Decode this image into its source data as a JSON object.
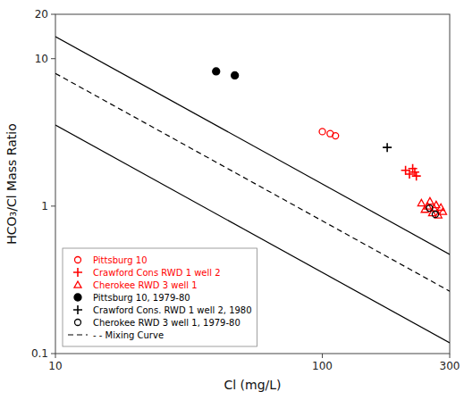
{
  "chart_data": {
    "type": "scatter",
    "xlabel": "Cl (mg/L)",
    "ylabel": "HCO₃/Cl Mass Ratio",
    "log": true,
    "grid": false,
    "legend": "lower left",
    "xlim": [
      10,
      300
    ],
    "ylim": [
      0.1,
      20
    ],
    "xticks": [
      10,
      100,
      300
    ],
    "yticks": [
      0.1,
      1,
      10,
      20
    ],
    "series": [
      {
        "name": "Pittsburg 10",
        "color": "#FF0000",
        "marker": "circle-open",
        "x": [
          100,
          107,
          112
        ],
        "values": [
          3.2,
          3.1,
          3.0
        ]
      },
      {
        "name": "Crawford Cons RWD 1 well 2",
        "color": "#FF0000",
        "marker": "plus",
        "x": [
          205,
          212,
          218,
          222,
          225
        ],
        "values": [
          1.75,
          1.65,
          1.8,
          1.7,
          1.6
        ]
      },
      {
        "name": "Cherokee RWD 3 well 1",
        "color": "#FF0000",
        "marker": "triangle-open",
        "x": [
          235,
          242,
          248,
          253,
          258,
          262,
          267,
          272,
          278,
          283
        ],
        "values": [
          1.05,
          0.95,
          1.0,
          1.08,
          0.9,
          0.97,
          1.02,
          0.87,
          0.98,
          0.92
        ]
      },
      {
        "name": "Pittsburg 10, 1979-80",
        "color": "#000000",
        "marker": "circle",
        "x": [
          40,
          47
        ],
        "values": [
          8.2,
          7.7
        ]
      },
      {
        "name": "Crawford Cons. RWD 1 well 2, 1980",
        "color": "#000000",
        "marker": "plus",
        "x": [
          175
        ],
        "values": [
          2.5
        ]
      },
      {
        "name": "Cherokee RWD 3 well 1, 1979-80",
        "color": "#000000",
        "marker": "circle-open",
        "x": [
          252,
          265
        ],
        "values": [
          0.97,
          0.88
        ]
      },
      {
        "name": "- - Mixing Curve",
        "type": "line",
        "color": "#000000",
        "line_style": "dashed",
        "x": [
          10,
          300
        ],
        "values": [
          7.94328235,
          0.264776078
        ]
      },
      {
        "type": "line",
        "color": "#000000",
        "line_style": "solid",
        "x": [
          10,
          300
        ],
        "values": [
          14.1253754,
          0.470845847
        ]
      },
      {
        "type": "line",
        "color": "#000000",
        "line_style": "solid",
        "x": [
          10,
          300
        ],
        "values": [
          3.54813389,
          0.11827113
        ]
      }
    ]
  }
}
